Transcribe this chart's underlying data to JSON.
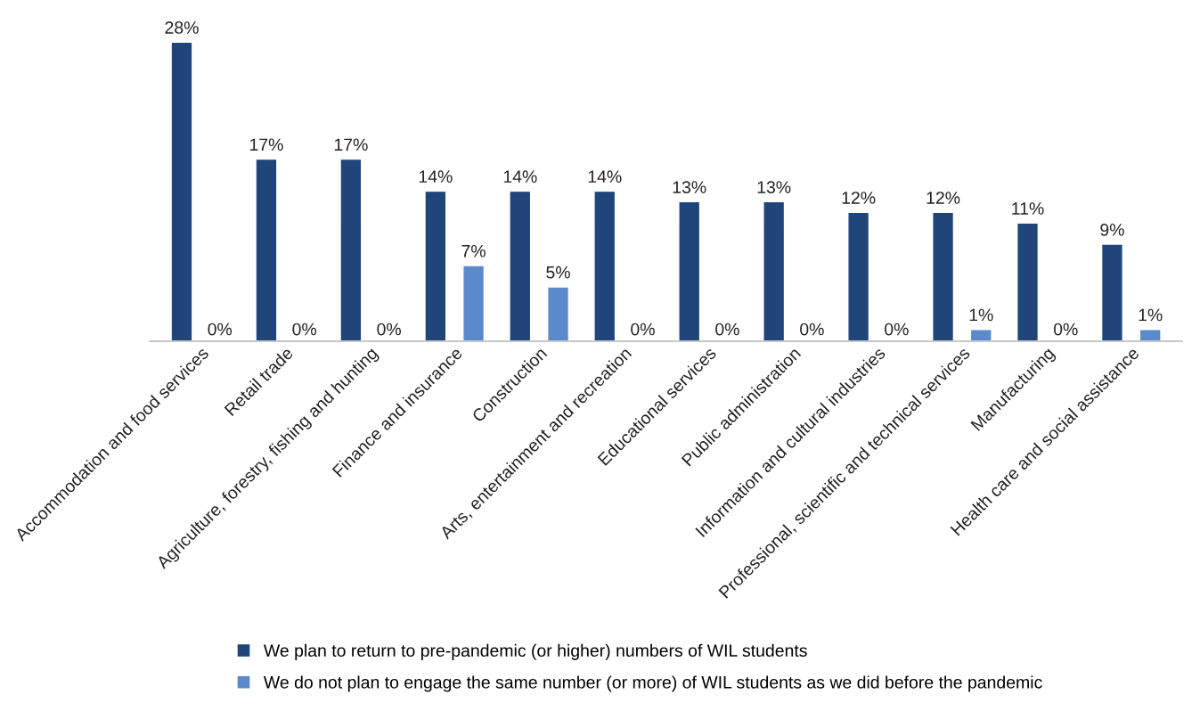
{
  "chart_data": {
    "type": "bar",
    "categories": [
      "Accommodation and food services",
      "Retail trade",
      "Agriculture, forestry, fishing and hunting",
      "Finance and insurance",
      "Construction",
      "Arts, entertainment and recreation",
      "Educational services",
      "Public administration",
      "Information and cultural industries",
      "Professional, scientific and technical services",
      "Manufacturing",
      "Health care and social assistance"
    ],
    "series": [
      {
        "name": "We plan to return to pre-pandemic (or higher) numbers of WIL students",
        "color": "#1f457a",
        "values": [
          28,
          17,
          17,
          14,
          14,
          14,
          13,
          13,
          12,
          12,
          11,
          9
        ],
        "value_labels": [
          "28%",
          "17%",
          "17%",
          "14%",
          "14%",
          "14%",
          "13%",
          "13%",
          "12%",
          "12%",
          "11%",
          "9%"
        ]
      },
      {
        "name": "We do not plan to engage the same number (or more) of WIL students as we did before the pandemic",
        "color": "#5a8acb",
        "values": [
          0,
          0,
          0,
          7,
          5,
          0,
          0,
          0,
          0,
          1,
          0,
          1
        ],
        "value_labels": [
          "0%",
          "0%",
          "0%",
          "7%",
          "5%",
          "0%",
          "0%",
          "0%",
          "0%",
          "1%",
          "0%",
          "1%"
        ]
      }
    ],
    "legend": "bottom",
    "grid": false,
    "tick_labels": "x"
  }
}
